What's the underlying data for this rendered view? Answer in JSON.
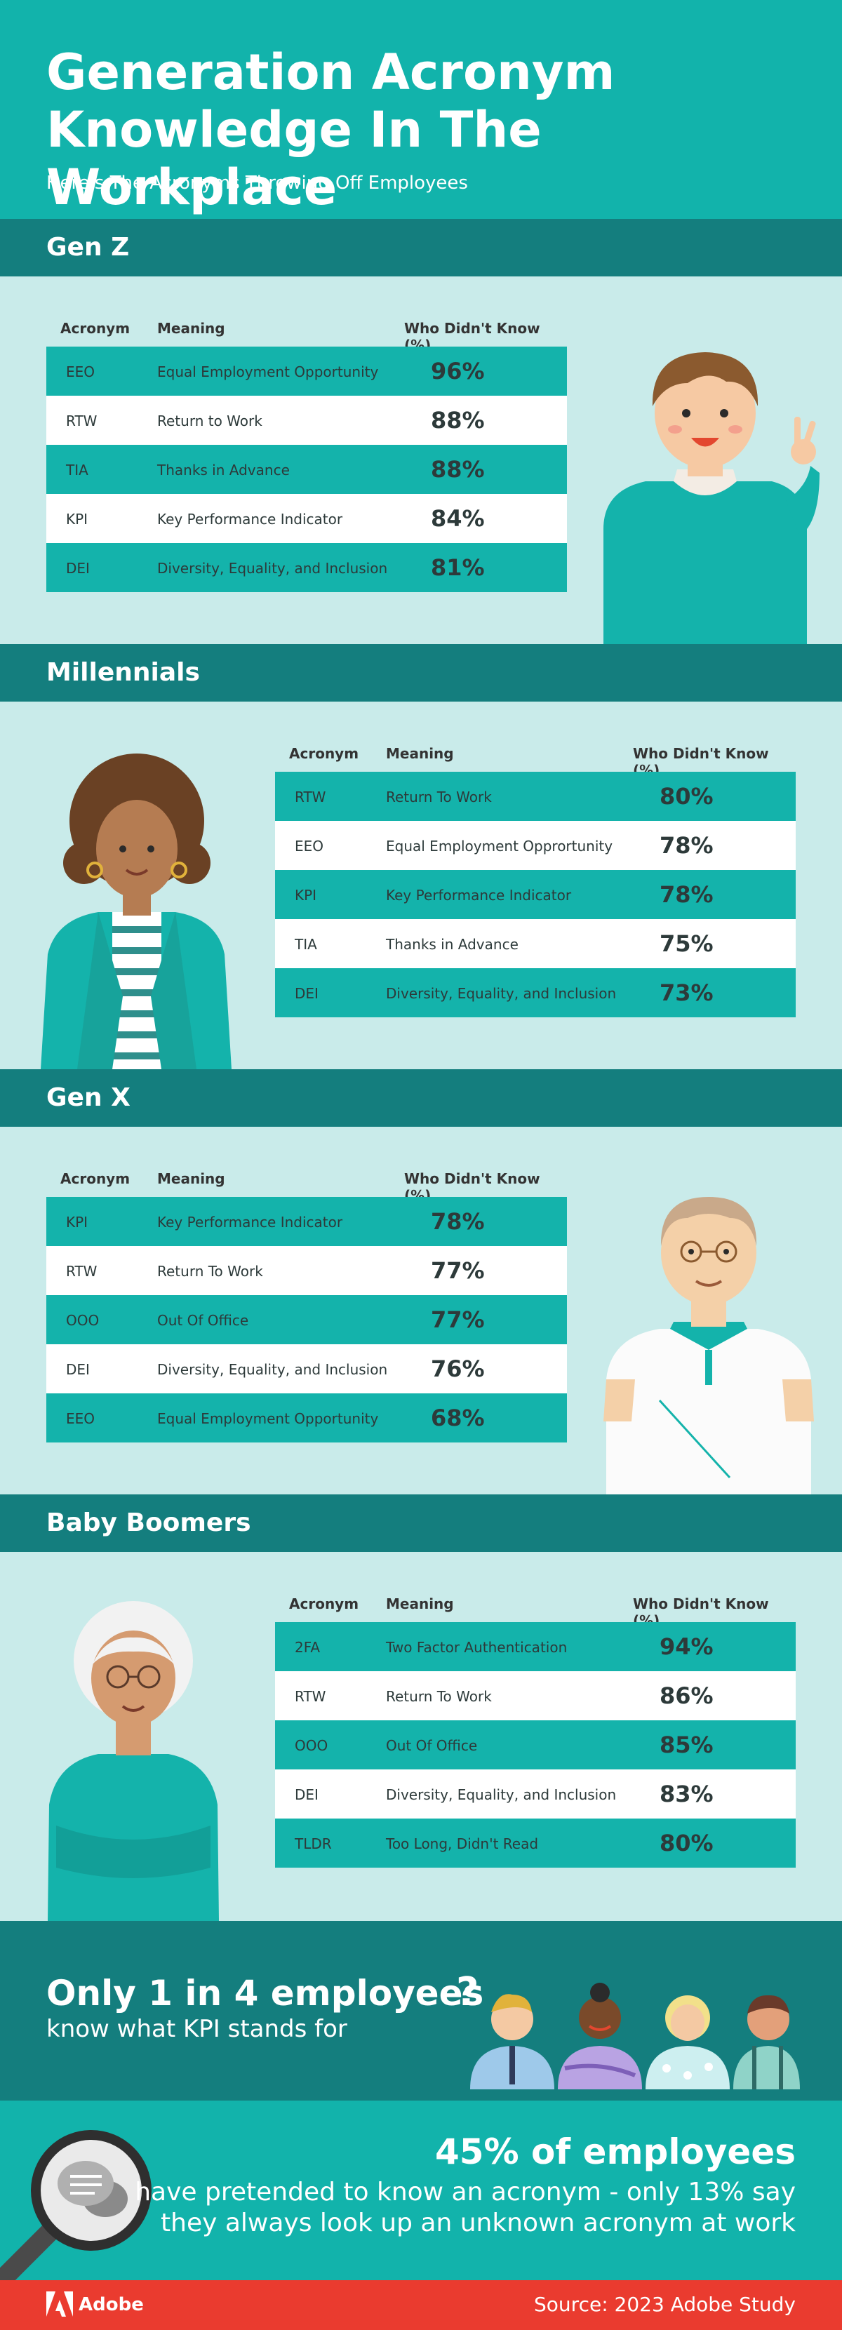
{
  "header": {
    "title_line1": "Generation Acronym",
    "title_line2": "Knowledge In The Workplace",
    "subtitle": "Here's The Acronyms Throwing Off Employees"
  },
  "columns": {
    "acronym": "Acronym",
    "meaning": "Meaning",
    "pct": "Who Didn't Know (%)"
  },
  "sections": [
    {
      "name": "Gen Z",
      "rows": [
        {
          "acr": "EEO",
          "meaning": "Equal Employment Opportunity",
          "pct": "96%"
        },
        {
          "acr": "RTW",
          "meaning": "Return to Work",
          "pct": "88%"
        },
        {
          "acr": "TIA",
          "meaning": "Thanks in Advance",
          "pct": "88%"
        },
        {
          "acr": "KPI",
          "meaning": "Key Performance Indicator",
          "pct": "84%"
        },
        {
          "acr": "DEI",
          "meaning": "Diversity, Equality, and Inclusion",
          "pct": "81%"
        }
      ]
    },
    {
      "name": "Millennials",
      "rows": [
        {
          "acr": "RTW",
          "meaning": "Return To Work",
          "pct": "80%"
        },
        {
          "acr": "EEO",
          "meaning": "Equal Employment Opprortunity",
          "pct": "78%"
        },
        {
          "acr": "KPI",
          "meaning": "Key Performance Indicator",
          "pct": "78%"
        },
        {
          "acr": "TIA",
          "meaning": "Thanks in Advance",
          "pct": "75%"
        },
        {
          "acr": "DEI",
          "meaning": "Diversity, Equality, and Inclusion",
          "pct": "73%"
        }
      ]
    },
    {
      "name": "Gen X",
      "rows": [
        {
          "acr": "KPI",
          "meaning": "Key Performance Indicator",
          "pct": "78%"
        },
        {
          "acr": "RTW",
          "meaning": "Return To Work",
          "pct": "77%"
        },
        {
          "acr": "OOO",
          "meaning": "Out Of Office",
          "pct": "77%"
        },
        {
          "acr": "DEI",
          "meaning": "Diversity, Equality, and Inclusion",
          "pct": "76%"
        },
        {
          "acr": "EEO",
          "meaning": "Equal Employment Opportunity",
          "pct": "68%"
        }
      ]
    },
    {
      "name": "Baby Boomers",
      "rows": [
        {
          "acr": "2FA",
          "meaning": "Two Factor Authentication",
          "pct": "94%"
        },
        {
          "acr": "RTW",
          "meaning": "Return To Work",
          "pct": "86%"
        },
        {
          "acr": "OOO",
          "meaning": "Out Of Office",
          "pct": "85%"
        },
        {
          "acr": "DEI",
          "meaning": "Diversity, Equality, and Inclusion",
          "pct": "83%"
        },
        {
          "acr": "TLDR",
          "meaning": "Too Long, Didn't Read",
          "pct": "80%"
        }
      ]
    }
  ],
  "kpi_callout": {
    "big": "Only 1 in 4 employees",
    "small": "know what KPI stands for"
  },
  "stat_callout": {
    "big": "45% of employees",
    "line1": "have pretended to know an acronym - only 13% say",
    "line2": "they always look up an unknown acronym at work"
  },
  "footer": {
    "brand": "Adobe",
    "source": "Source: 2023 Adobe Study"
  },
  "colors": {
    "teal": "#12b3ab",
    "dark_teal": "#147e7e",
    "light_bg": "#c9ebea",
    "adobe_red": "#ea3b2f"
  }
}
